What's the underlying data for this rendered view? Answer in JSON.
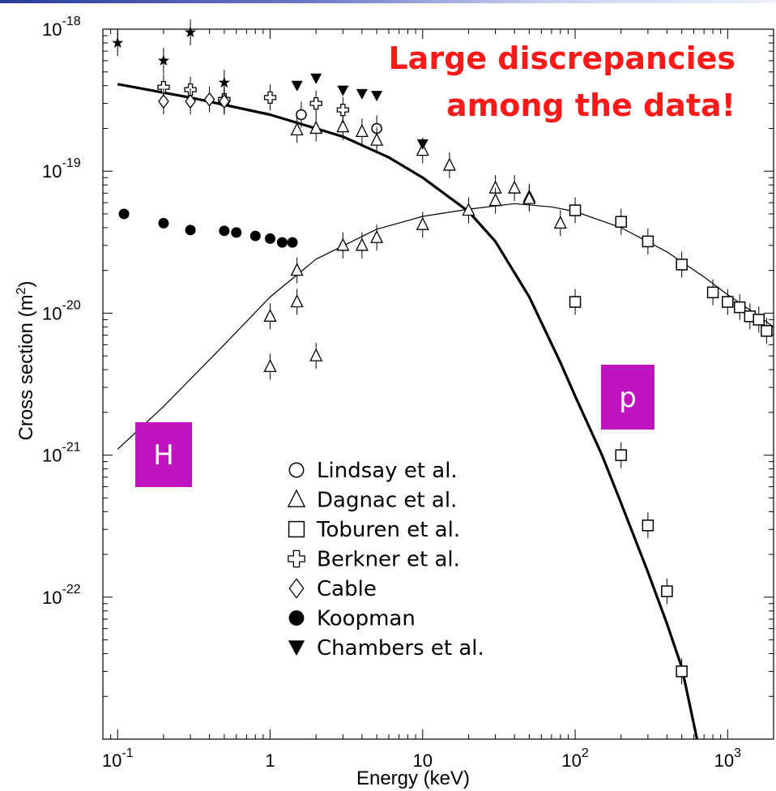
{
  "chart_data": {
    "type": "scatter",
    "title": "",
    "annotation": [
      "Large discrepancies",
      "among the data!"
    ],
    "xlabel": "Energy (keV)",
    "ylabel": "Cross section (m",
    "ylabel_sup": "2",
    "ylabel_close": ")",
    "xscale": "log",
    "yscale": "log",
    "xlim": [
      0.08,
      2000
    ],
    "ylim": [
      1e-23,
      1e-18
    ],
    "x_ticks": [
      {
        "value": 0.1,
        "base": "10",
        "exp": "-1"
      },
      {
        "value": 1,
        "base": "1",
        "exp": ""
      },
      {
        "value": 10,
        "base": "10",
        "exp": ""
      },
      {
        "value": 100,
        "base": "10",
        "exp": "2"
      },
      {
        "value": 1000,
        "base": "10",
        "exp": "3"
      }
    ],
    "y_ticks": [
      {
        "value": 1e-18,
        "base": "10",
        "exp": "-18"
      },
      {
        "value": 1e-19,
        "base": "10",
        "exp": "-19"
      },
      {
        "value": 1e-20,
        "base": "10",
        "exp": "-20"
      },
      {
        "value": 1e-21,
        "base": "10",
        "exp": "-21"
      },
      {
        "value": 1e-22,
        "base": "10",
        "exp": "-22"
      }
    ],
    "curves": [
      {
        "label": "p",
        "style": "thick",
        "points": [
          [
            0.1,
            4.1e-19
          ],
          [
            0.3,
            3.3e-19
          ],
          [
            1,
            2.5e-19
          ],
          [
            3,
            1.75e-19
          ],
          [
            6,
            1.25e-19
          ],
          [
            10,
            9e-20
          ],
          [
            20,
            5.2e-20
          ],
          [
            30,
            3.2e-20
          ],
          [
            50,
            1.3e-20
          ],
          [
            80,
            4.5e-21
          ],
          [
            100,
            2.6e-21
          ],
          [
            150,
            1e-21
          ],
          [
            200,
            4.6e-22
          ],
          [
            300,
            1.5e-22
          ],
          [
            400,
            6.5e-23
          ],
          [
            500,
            3.2e-23
          ],
          [
            630,
            1e-23
          ]
        ]
      },
      {
        "label": "H",
        "style": "thin",
        "points": [
          [
            0.1,
            1.1e-21
          ],
          [
            0.2,
            2.2e-21
          ],
          [
            0.5,
            6e-21
          ],
          [
            1,
            1.3e-20
          ],
          [
            2,
            2.4e-20
          ],
          [
            5,
            3.9e-20
          ],
          [
            10,
            4.8e-20
          ],
          [
            20,
            5.4e-20
          ],
          [
            40,
            5.9e-20
          ],
          [
            70,
            5.6e-20
          ],
          [
            100,
            5.2e-20
          ],
          [
            200,
            4e-20
          ],
          [
            400,
            2.7e-20
          ],
          [
            700,
            1.8e-20
          ],
          [
            1000,
            1.35e-20
          ],
          [
            1500,
            1e-20
          ],
          [
            2000,
            8e-21
          ]
        ]
      }
    ],
    "curve_labels": [
      {
        "text": "H",
        "color": "#c013c0"
      },
      {
        "text": "p",
        "color": "#c013c0"
      }
    ],
    "series": [
      {
        "name": "Lindsay et al.",
        "marker": "circle-open",
        "points": [
          [
            0.5,
            3.1e-19
          ],
          [
            1.6,
            2.5e-19
          ],
          [
            5,
            2e-19
          ]
        ]
      },
      {
        "name": "Dagnac et al.",
        "marker": "triangle-open",
        "points": [
          [
            1.5,
            1.95e-19
          ],
          [
            2,
            2e-19
          ],
          [
            3,
            2.05e-19
          ],
          [
            4,
            1.9e-19
          ],
          [
            5,
            1.65e-19
          ],
          [
            10,
            1.4e-19
          ],
          [
            15,
            1.1e-19
          ],
          [
            30,
            7.6e-20
          ],
          [
            40,
            7.6e-20
          ],
          [
            50,
            6.6e-20
          ],
          [
            1,
            9.5e-21
          ],
          [
            1.5,
            1.2e-20
          ],
          [
            1.5,
            2e-20
          ],
          [
            3,
            3e-20
          ],
          [
            4,
            3e-20
          ],
          [
            5,
            3.4e-20
          ],
          [
            10,
            4.2e-20
          ],
          [
            20,
            5.3e-20
          ],
          [
            30,
            6.2e-20
          ],
          [
            50,
            6.4e-20
          ],
          [
            80,
            4.3e-20
          ],
          [
            1,
            4.2e-21
          ],
          [
            2,
            5e-21
          ]
        ]
      },
      {
        "name": "Toburen et al.",
        "marker": "square-open",
        "points": [
          [
            100,
            5.3e-20
          ],
          [
            200,
            4.4e-20
          ],
          [
            300,
            3.2e-20
          ],
          [
            500,
            2.2e-20
          ],
          [
            800,
            1.4e-20
          ],
          [
            1000,
            1.2e-20
          ],
          [
            1200,
            1.1e-20
          ],
          [
            1400,
            9.5e-21
          ],
          [
            1600,
            9e-21
          ],
          [
            1800,
            7.5e-21
          ],
          [
            100,
            1.2e-20
          ],
          [
            200,
            1e-21
          ],
          [
            300,
            3.2e-22
          ],
          [
            400,
            1.1e-22
          ],
          [
            500,
            3e-23
          ]
        ]
      },
      {
        "name": "Berkner et al.",
        "marker": "cross-open",
        "points": [
          [
            0.2,
            3.9e-19
          ],
          [
            0.3,
            3.75e-19
          ],
          [
            0.5,
            3.2e-19
          ],
          [
            1,
            3.3e-19
          ],
          [
            2,
            3e-19
          ],
          [
            3,
            2.7e-19
          ]
        ]
      },
      {
        "name": "Cable",
        "marker": "diamond-open",
        "points": [
          [
            0.2,
            3.1e-19
          ],
          [
            0.3,
            3.1e-19
          ],
          [
            0.4,
            3.2e-19
          ],
          [
            0.5,
            3.1e-19
          ]
        ]
      },
      {
        "name": "Koopman",
        "marker": "circle-filled",
        "points": [
          [
            0.11,
            5e-20
          ],
          [
            0.2,
            4.3e-20
          ],
          [
            0.3,
            3.85e-20
          ],
          [
            0.5,
            3.8e-20
          ],
          [
            0.6,
            3.7e-20
          ],
          [
            0.8,
            3.5e-20
          ],
          [
            1,
            3.35e-20
          ],
          [
            1.2,
            3.15e-20
          ],
          [
            1.4,
            3.15e-20
          ]
        ]
      },
      {
        "name": "Chambers et al.",
        "marker": "triangle-down-filled",
        "points": [
          [
            1.5,
            4e-19
          ],
          [
            2,
            4.5e-19
          ],
          [
            3,
            3.7e-19
          ],
          [
            4,
            3.5e-19
          ],
          [
            5,
            3.4e-19
          ],
          [
            10,
            1.55e-19
          ]
        ]
      },
      {
        "name": "",
        "marker": "star-filled",
        "points": [
          [
            0.1,
            8e-19
          ],
          [
            0.2,
            6e-19
          ],
          [
            0.3,
            9.5e-19
          ],
          [
            0.5,
            4.2e-19
          ]
        ]
      }
    ],
    "legend": [
      {
        "marker": "circle-open",
        "label": "Lindsay et al."
      },
      {
        "marker": "triangle-open",
        "label": "Dagnac et al."
      },
      {
        "marker": "square-open",
        "label": "Toburen et al."
      },
      {
        "marker": "cross-open",
        "label": "Berkner et al."
      },
      {
        "marker": "diamond-open",
        "label": "Cable"
      },
      {
        "marker": "circle-filled",
        "label": "Koopman"
      },
      {
        "marker": "triangle-down-filled",
        "label": "Chambers et al."
      }
    ],
    "legend_position": "lower-center",
    "grid": false,
    "colors": {
      "headline": "#ff1a1a",
      "tag": "#c013c0",
      "ink": "#000000"
    }
  }
}
